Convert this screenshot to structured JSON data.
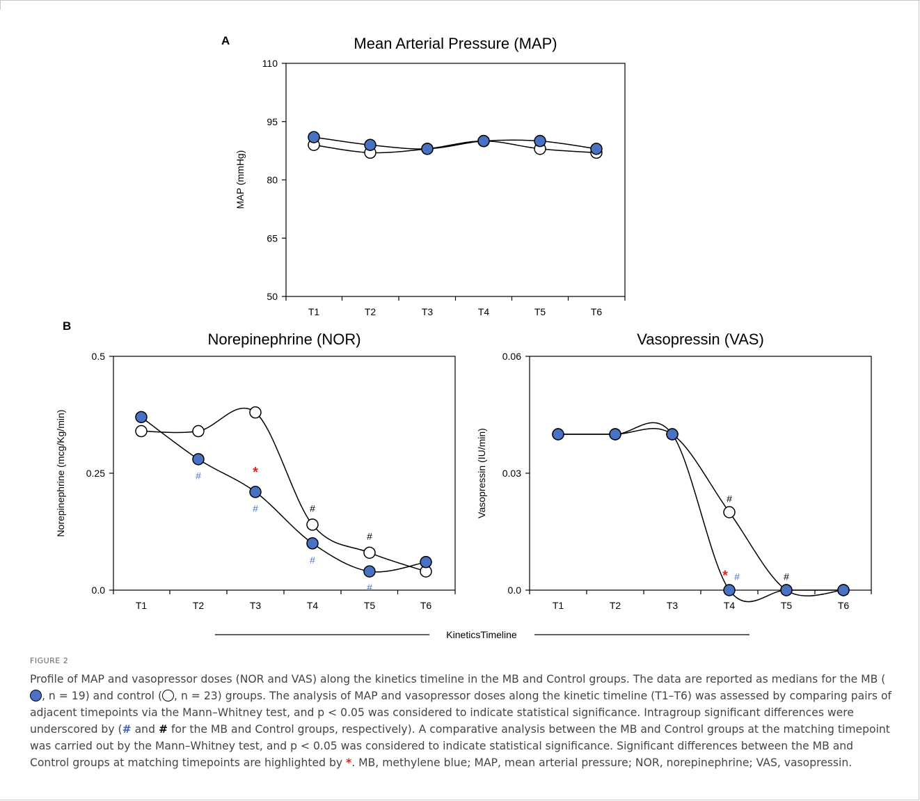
{
  "colors": {
    "mb_fill": "#4a72c4",
    "control_fill": "#ffffff",
    "line": "#000000",
    "sig_red": "#e8231f",
    "sig_blue": "#4a76c6"
  },
  "panel_a_label": "A",
  "panel_b_label": "B",
  "timeline_label": "KineticsTimeline",
  "chart_data": [
    {
      "id": "map",
      "type": "line",
      "title": "Mean Arterial Pressure (MAP)",
      "ylabel": "MAP (mmHg)",
      "xlabel": "",
      "categories": [
        "T1",
        "T2",
        "T3",
        "T4",
        "T5",
        "T6"
      ],
      "ylim": [
        50,
        110
      ],
      "yticks": [
        50,
        65,
        80,
        95,
        110
      ],
      "ytick_labels": [
        "50",
        "65",
        "80",
        "95",
        "110"
      ],
      "series": [
        {
          "group": "control",
          "marker": "open",
          "values": [
            89,
            87,
            88,
            90,
            88,
            87
          ]
        },
        {
          "group": "mb",
          "marker": "filled",
          "values": [
            91,
            89,
            88,
            90,
            90,
            88
          ]
        }
      ],
      "annotations": []
    },
    {
      "id": "nor",
      "type": "line",
      "title": "Norepinephrine (NOR)",
      "ylabel": "Norepinephrine (mcg/Kg/min)",
      "xlabel": "",
      "categories": [
        "T1",
        "T2",
        "T3",
        "T4",
        "T5",
        "T6"
      ],
      "ylim": [
        0,
        0.5
      ],
      "yticks": [
        0,
        0.25,
        0.5
      ],
      "ytick_labels": [
        "0.0",
        "0.25",
        "0.5"
      ],
      "series": [
        {
          "group": "control",
          "marker": "open",
          "values": [
            0.34,
            0.34,
            0.38,
            0.14,
            0.08,
            0.04
          ]
        },
        {
          "group": "mb",
          "marker": "filled",
          "values": [
            0.37,
            0.28,
            0.21,
            0.1,
            0.04,
            0.06
          ]
        }
      ],
      "annotations": [
        {
          "text": "#",
          "color": "blue",
          "cat": 1,
          "y": 0.245
        },
        {
          "text": "*",
          "color": "red",
          "cat": 2,
          "y": 0.25
        },
        {
          "text": "#",
          "color": "blue",
          "cat": 2,
          "y": 0.175
        },
        {
          "text": "#",
          "color": "black",
          "cat": 3,
          "y": 0.175
        },
        {
          "text": "#",
          "color": "blue",
          "cat": 3,
          "y": 0.065
        },
        {
          "text": "#",
          "color": "black",
          "cat": 4,
          "y": 0.115
        },
        {
          "text": "#",
          "color": "blue",
          "cat": 4,
          "y": 0.006
        }
      ]
    },
    {
      "id": "vas",
      "type": "line",
      "title": "Vasopressin (VAS)",
      "ylabel": "Vasopressin (IU/min)",
      "xlabel": "",
      "categories": [
        "T1",
        "T2",
        "T3",
        "T4",
        "T5",
        "T6"
      ],
      "ylim": [
        0,
        0.06
      ],
      "yticks": [
        0,
        0.03,
        0.06
      ],
      "ytick_labels": [
        "0.0",
        "0.03",
        "0.06"
      ],
      "series": [
        {
          "group": "control",
          "marker": "open",
          "values": [
            0.04,
            0.04,
            0.04,
            0.02,
            0,
            0
          ]
        },
        {
          "group": "mb",
          "marker": "filled",
          "values": [
            0.04,
            0.04,
            0.04,
            0,
            0,
            0
          ]
        }
      ],
      "annotations": [
        {
          "text": "#",
          "color": "black",
          "cat": 3,
          "y": 0.0235
        },
        {
          "text": "*",
          "color": "red",
          "cat": 3,
          "y": 0.0035
        },
        {
          "text": "#",
          "color": "blue",
          "cat": 3,
          "y": 0.0035
        },
        {
          "text": "#",
          "color": "black",
          "cat": 4,
          "y": 0.0035
        }
      ]
    }
  ],
  "caption": {
    "figure_label": "FIGURE 2",
    "s1": "Profile of MAP and vasopressor doses (NOR and VAS) along the kinetics timeline in the MB and Control groups. The data are reported as medians for the MB (",
    "n_mb": ", n = 19) and control (",
    "n_ctrl": ", n = 23) groups. The analysis of MAP and vasopressor doses along the kinetic timeline (T1–T6) was assessed by comparing pairs of adjacent timepoints via the Mann–Whitney test, and p < 0.05 was considered to indicate statistical significance. Intragroup significant differences were underscored by (",
    "hash": "#",
    "and": " and ",
    "s2": " for the MB and Control groups, respectively). A comparative analysis between the MB and Control groups at the matching timepoint was carried out by the Mann–Whitney test, and p < 0.05 was considered to indicate statistical significance. Significant differences between the MB and Control groups at matching timepoints are highlighted by ",
    "star": "*",
    "s3": ". MB, methylene blue; MAP, mean arterial pressure; NOR, norepinephrine; VAS, vasopressin."
  }
}
